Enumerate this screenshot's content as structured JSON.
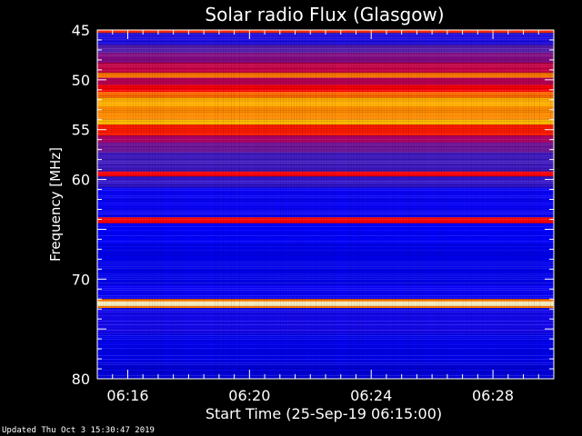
{
  "chart_data": {
    "type": "heatmap",
    "title": "Solar radio Flux (Glasgow)",
    "xlabel": "Start Time (25-Sep-19 06:15:00)",
    "ylabel": "Frequency [MHz]",
    "xlim": [
      "06:15:00",
      "06:30:00"
    ],
    "ylim": [
      45,
      80
    ],
    "x_ticks": [
      "06:16",
      "06:20",
      "06:24",
      "06:28"
    ],
    "y_ticks": [
      45,
      50,
      55,
      60,
      70,
      80
    ],
    "colormap": [
      "#000080",
      "#0000ff",
      "#4b1fb0",
      "#a0006a",
      "#ff0000",
      "#ff8800",
      "#ffdd00",
      "#ffffff"
    ],
    "frequency_profile": [
      {
        "from_mhz": 45.0,
        "to_mhz": 45.3,
        "intensity": 0.62
      },
      {
        "from_mhz": 45.3,
        "to_mhz": 46.5,
        "intensity": 0.2
      },
      {
        "from_mhz": 46.5,
        "to_mhz": 47.3,
        "intensity": 0.3
      },
      {
        "from_mhz": 47.3,
        "to_mhz": 48.3,
        "intensity": 0.38
      },
      {
        "from_mhz": 48.3,
        "to_mhz": 49.3,
        "intensity": 0.48
      },
      {
        "from_mhz": 49.3,
        "to_mhz": 49.8,
        "intensity": 0.7
      },
      {
        "from_mhz": 49.8,
        "to_mhz": 50.5,
        "intensity": 0.46
      },
      {
        "from_mhz": 50.5,
        "to_mhz": 51.2,
        "intensity": 0.56
      },
      {
        "from_mhz": 51.2,
        "to_mhz": 51.8,
        "intensity": 0.68
      },
      {
        "from_mhz": 51.8,
        "to_mhz": 52.7,
        "intensity": 0.78
      },
      {
        "from_mhz": 52.7,
        "to_mhz": 54.0,
        "intensity": 0.72
      },
      {
        "from_mhz": 54.0,
        "to_mhz": 54.5,
        "intensity": 0.8
      },
      {
        "from_mhz": 54.5,
        "to_mhz": 55.6,
        "intensity": 0.6
      },
      {
        "from_mhz": 55.6,
        "to_mhz": 56.3,
        "intensity": 0.44
      },
      {
        "from_mhz": 56.3,
        "to_mhz": 57.3,
        "intensity": 0.34
      },
      {
        "from_mhz": 57.3,
        "to_mhz": 59.2,
        "intensity": 0.26
      },
      {
        "from_mhz": 59.2,
        "to_mhz": 59.7,
        "intensity": 0.56
      },
      {
        "from_mhz": 59.7,
        "to_mhz": 60.8,
        "intensity": 0.24
      },
      {
        "from_mhz": 60.8,
        "to_mhz": 63.8,
        "intensity": 0.16
      },
      {
        "from_mhz": 63.8,
        "to_mhz": 64.4,
        "intensity": 0.56
      },
      {
        "from_mhz": 64.4,
        "to_mhz": 66.5,
        "intensity": 0.14
      },
      {
        "from_mhz": 66.5,
        "to_mhz": 70.5,
        "intensity": 0.12
      },
      {
        "from_mhz": 70.5,
        "to_mhz": 72.0,
        "intensity": 0.16
      },
      {
        "from_mhz": 72.0,
        "to_mhz": 72.25,
        "intensity": 0.7
      },
      {
        "from_mhz": 72.25,
        "to_mhz": 72.7,
        "intensity": 0.97
      },
      {
        "from_mhz": 72.7,
        "to_mhz": 72.9,
        "intensity": 0.7
      },
      {
        "from_mhz": 72.9,
        "to_mhz": 75.5,
        "intensity": 0.18
      },
      {
        "from_mhz": 75.5,
        "to_mhz": 78.5,
        "intensity": 0.12
      },
      {
        "from_mhz": 78.5,
        "to_mhz": 80.0,
        "intensity": 0.1
      }
    ],
    "grid": false,
    "legend": "none"
  },
  "footer": "Updated Thu Oct  3 15:30:47 2019"
}
